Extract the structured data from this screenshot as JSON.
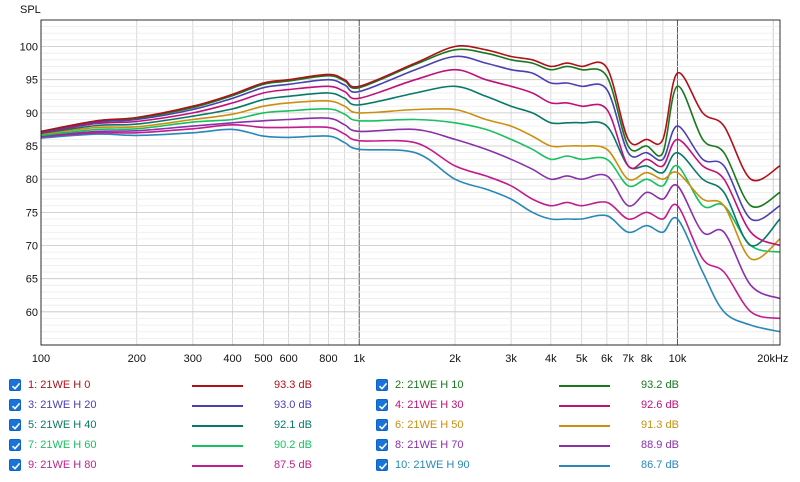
{
  "chart_data": {
    "type": "line",
    "ylabel": "SPL",
    "xscale": "log",
    "xlim": [
      100,
      21000
    ],
    "ylim": [
      55,
      104
    ],
    "grid": true,
    "yticks": [
      100,
      95,
      90,
      85,
      80,
      75,
      70,
      65,
      60
    ],
    "xticks": [
      {
        "v": 100,
        "label": "100"
      },
      {
        "v": 200,
        "label": "200"
      },
      {
        "v": 300,
        "label": "300"
      },
      {
        "v": 400,
        "label": "400"
      },
      {
        "v": 500,
        "label": "500"
      },
      {
        "v": 600,
        "label": "600"
      },
      {
        "v": 800,
        "label": "800"
      },
      {
        "v": 1000,
        "label": "1k"
      },
      {
        "v": 2000,
        "label": "2k"
      },
      {
        "v": 3000,
        "label": "3k"
      },
      {
        "v": 4000,
        "label": "4k"
      },
      {
        "v": 5000,
        "label": "5k"
      },
      {
        "v": 6000,
        "label": "6k"
      },
      {
        "v": 7000,
        "label": "7k"
      },
      {
        "v": 8000,
        "label": "8k"
      },
      {
        "v": 10000,
        "label": "10k"
      },
      {
        "v": 20000,
        "label": "20kHz"
      }
    ],
    "x": [
      100,
      150,
      200,
      300,
      400,
      500,
      600,
      800,
      900,
      1000,
      1500,
      2000,
      2500,
      3000,
      3500,
      4000,
      4500,
      5000,
      6000,
      7000,
      8000,
      9000,
      10000,
      12000,
      14000,
      17000,
      21000
    ],
    "series": [
      {
        "name": "1: 21WE H 0",
        "color": "#b01018",
        "value": "93.3 dB",
        "values": [
          87.2,
          88.8,
          89.3,
          91.0,
          92.8,
          94.5,
          95.0,
          95.8,
          95.0,
          94.0,
          97.5,
          100.0,
          99.5,
          98.5,
          98.0,
          97.0,
          97.5,
          97.0,
          96.8,
          86,
          86,
          86,
          96,
          90,
          88,
          80,
          82
        ]
      },
      {
        "name": "2: 21WE H 10",
        "color": "#17781e",
        "value": "93.2 dB",
        "values": [
          87.2,
          88.8,
          89.2,
          90.8,
          92.6,
          94.3,
          94.8,
          95.6,
          94.8,
          93.8,
          97.3,
          99.5,
          99.0,
          98.0,
          97.5,
          96.5,
          97.0,
          96.5,
          95.5,
          85,
          85,
          84,
          94,
          86,
          84,
          76,
          78
        ]
      },
      {
        "name": "3: 21WE H 20",
        "color": "#4a40b0",
        "value": "93.0 dB",
        "values": [
          87.1,
          88.6,
          89.0,
          90.5,
          92.2,
          93.8,
          94.3,
          95.0,
          94.2,
          93.2,
          96.5,
          98.5,
          97.5,
          96.5,
          96.0,
          94.5,
          94.5,
          94.0,
          93.5,
          84,
          84,
          83,
          88,
          83,
          82,
          74,
          76
        ]
      },
      {
        "name": "4: 21WE H 30",
        "color": "#c0107a",
        "value": "92.6 dB",
        "values": [
          87.0,
          88.4,
          88.7,
          90.0,
          91.5,
          93.0,
          93.5,
          94.0,
          93.2,
          92.2,
          95.0,
          96.5,
          95.0,
          94.0,
          93.0,
          91.5,
          91.5,
          91.0,
          90.5,
          82,
          83,
          82,
          86,
          82,
          80,
          72,
          70
        ]
      },
      {
        "name": "5: 21WE H 40",
        "color": "#087868",
        "value": "92.1 dB",
        "values": [
          86.9,
          88.1,
          88.3,
          89.5,
          90.6,
          92.0,
          92.5,
          93.0,
          92.2,
          91.2,
          93.0,
          94.0,
          92.5,
          91.0,
          90.0,
          88.5,
          88.5,
          88.5,
          88.0,
          82,
          82,
          81,
          84,
          80,
          78,
          70,
          74
        ]
      },
      {
        "name": "6: 21WE H 50",
        "color": "#c99010",
        "value": "91.3 dB",
        "values": [
          86.8,
          87.8,
          87.9,
          89.0,
          89.8,
          91.0,
          91.5,
          91.8,
          91.0,
          90.0,
          90.5,
          90.5,
          89.0,
          88.0,
          86.5,
          85.0,
          85.0,
          85.0,
          84.5,
          80,
          81,
          80,
          81,
          77,
          76,
          68,
          71
        ]
      },
      {
        "name": "7: 21WE H 60",
        "color": "#18c060",
        "value": "90.2 dB",
        "values": [
          86.6,
          87.5,
          87.6,
          88.6,
          89.0,
          90.0,
          90.3,
          90.6,
          89.8,
          88.8,
          89.0,
          88.5,
          87.5,
          86.0,
          84.5,
          83.0,
          83.5,
          83.0,
          83.0,
          79,
          80,
          79,
          82,
          76,
          76,
          70,
          69
        ]
      },
      {
        "name": "8: 21WE H 70",
        "color": "#8a30a8",
        "value": "88.9 dB",
        "values": [
          86.5,
          87.2,
          87.3,
          88.0,
          88.5,
          88.8,
          89.0,
          89.2,
          88.2,
          87.2,
          87.5,
          86.0,
          84.5,
          83.0,
          81.5,
          80.0,
          80.5,
          80.0,
          80.5,
          76,
          78,
          77,
          79,
          72,
          72,
          64,
          62
        ]
      },
      {
        "name": "9: 21WE H 80",
        "color": "#c01e8e",
        "value": "87.5 dB",
        "values": [
          86.4,
          87.0,
          87.0,
          87.6,
          88.2,
          87.8,
          87.8,
          87.8,
          86.8,
          85.8,
          85.5,
          82.0,
          80.5,
          79.0,
          77.0,
          76.0,
          76.5,
          76.0,
          76.5,
          74,
          75,
          74,
          76,
          68,
          66,
          60,
          59
        ]
      },
      {
        "name": "10: 21WE H 90",
        "color": "#2888b8",
        "value": "86.7 dB",
        "values": [
          86.2,
          86.8,
          86.6,
          87.0,
          87.5,
          86.5,
          86.3,
          86.5,
          85.5,
          84.5,
          84.0,
          80.0,
          78.5,
          77.0,
          75.0,
          74.0,
          74.0,
          74.0,
          74.5,
          72,
          73,
          72,
          74,
          66,
          60,
          58,
          57
        ]
      }
    ]
  }
}
